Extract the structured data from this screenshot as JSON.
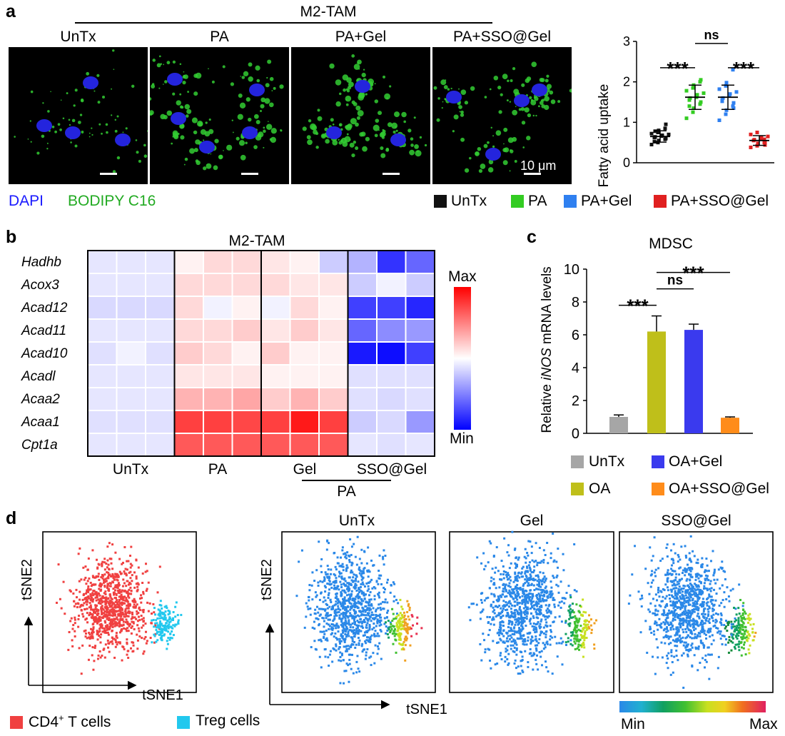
{
  "panel_a": {
    "letter": "a",
    "group_label": "M2-TAM",
    "image_titles": [
      "UnTx",
      "PA",
      "PA+Gel",
      "PA+SSO@Gel"
    ],
    "scalebar_text": "10 μm",
    "stain_dapi": "DAPI",
    "stain_bodipy": "BODIPY C16",
    "colors": {
      "dapi": "#1a1aff",
      "bodipy": "#22cc22"
    }
  },
  "panel_b": {
    "letter": "b",
    "title": "M2-TAM",
    "genes": [
      "Hadhb",
      "Acox3",
      "Acad12",
      "Acad11",
      "Acad10",
      "Acadl",
      "Acaa2",
      "Acaa1",
      "Cpt1a"
    ],
    "group_labels": [
      "UnTx",
      "PA",
      "Gel",
      "SSO@Gel"
    ],
    "bracket_label": "PA",
    "scale_max": "Max",
    "scale_min": "Min"
  },
  "panel_c": {
    "letter": "c",
    "title": "MDSC",
    "ylabel_pre": "Relative ",
    "ylabel_italic": "iNOS",
    "ylabel_post": " mRNA levels",
    "sig_labels": [
      "***",
      "ns",
      "***"
    ],
    "legend": [
      "UnTx",
      "OA+Gel",
      "OA",
      "OA+SSO@Gel"
    ]
  },
  "panel_d": {
    "letter": "d",
    "titles": [
      "UnTx",
      "Gel",
      "SSO@Gel"
    ],
    "axis_x": "tSNE1",
    "axis_y": "tSNE2",
    "legend_cd4_pre": "CD4",
    "legend_cd4_sup": "+",
    "legend_cd4_post": " T cells",
    "legend_treg": "Treg cells",
    "colorbar_min": "Min",
    "colorbar_max": "Max",
    "colors": {
      "cd4": "#f04040",
      "treg": "#22c8ee",
      "base": "#2a88e8"
    }
  },
  "chart_data": [
    {
      "type": "scatter",
      "ylabel": "Fatty acid uptake",
      "ylim": [
        0,
        3
      ],
      "yticks": [
        0,
        1,
        2,
        3
      ],
      "categories": [
        "UnTx",
        "PA",
        "PA+Gel",
        "PA+SSO@Gel"
      ],
      "series": [
        {
          "name": "UnTx",
          "color": "#111111",
          "mean": 0.65,
          "sd": 0.14,
          "values": [
            0.45,
            0.5,
            0.55,
            0.58,
            0.6,
            0.62,
            0.64,
            0.66,
            0.68,
            0.7,
            0.72,
            0.75,
            0.8,
            0.85,
            0.95,
            0.52,
            0.78
          ]
        },
        {
          "name": "PA",
          "color": "#33cc22",
          "mean": 1.62,
          "sd": 0.3,
          "values": [
            1.1,
            1.25,
            1.35,
            1.45,
            1.5,
            1.55,
            1.6,
            1.62,
            1.68,
            1.72,
            1.78,
            1.85,
            1.92,
            2.0,
            2.05,
            1.4
          ]
        },
        {
          "name": "PA+Gel",
          "color": "#2f80f0",
          "mean": 1.62,
          "sd": 0.3,
          "values": [
            1.05,
            1.2,
            1.3,
            1.4,
            1.48,
            1.55,
            1.6,
            1.65,
            1.7,
            1.75,
            1.82,
            1.9,
            1.98,
            2.3,
            1.35,
            1.52
          ]
        },
        {
          "name": "PA+SSO@Gel",
          "color": "#e02020",
          "mean": 0.55,
          "sd": 0.12,
          "values": [
            0.38,
            0.42,
            0.46,
            0.5,
            0.52,
            0.55,
            0.57,
            0.6,
            0.62,
            0.65,
            0.7,
            0.75,
            0.48,
            0.58,
            0.44
          ]
        }
      ],
      "significance": [
        {
          "between": [
            "UnTx",
            "PA"
          ],
          "label": "***"
        },
        {
          "between": [
            "PA",
            "PA+Gel"
          ],
          "label": "ns"
        },
        {
          "between": [
            "PA+Gel",
            "PA+SSO@Gel"
          ],
          "label": "***"
        }
      ],
      "legend": [
        "UnTx",
        "PA",
        "PA+Gel",
        "PA+SSO@Gel"
      ]
    },
    {
      "type": "heatmap",
      "title": "M2-TAM",
      "rows": [
        "Hadhb",
        "Acox3",
        "Acad12",
        "Acad11",
        "Acad10",
        "Acadl",
        "Acaa2",
        "Acaa1",
        "Cpt1a"
      ],
      "column_groups": [
        "UnTx",
        "PA",
        "Gel",
        "SSO@Gel"
      ],
      "replicates_per_group": 3,
      "scale": [
        "Min",
        "Max"
      ],
      "values": [
        [
          -0.1,
          -0.1,
          -0.1,
          0.05,
          0.15,
          0.15,
          0.1,
          0.05,
          -0.2,
          -0.3,
          -0.8,
          -0.6
        ],
        [
          -0.1,
          -0.1,
          -0.1,
          0.15,
          0.15,
          0.15,
          0.15,
          0.1,
          0.1,
          -0.2,
          -0.05,
          -0.2
        ],
        [
          -0.15,
          -0.15,
          -0.15,
          0.15,
          -0.05,
          0.05,
          -0.05,
          0.15,
          0.05,
          -0.75,
          -0.75,
          -0.85
        ],
        [
          -0.1,
          -0.1,
          -0.1,
          0.15,
          0.15,
          0.2,
          0.1,
          0.2,
          0.1,
          -0.6,
          -0.45,
          -0.4
        ],
        [
          -0.12,
          -0.05,
          -0.12,
          0.2,
          0.15,
          0.05,
          0.2,
          0.05,
          0.05,
          -0.9,
          -0.95,
          -0.75
        ],
        [
          -0.1,
          -0.1,
          -0.1,
          0.1,
          0.1,
          0.1,
          0.05,
          0.05,
          0.05,
          -0.12,
          -0.12,
          -0.12
        ],
        [
          -0.1,
          -0.1,
          -0.1,
          0.3,
          0.3,
          0.35,
          0.2,
          0.3,
          0.2,
          -0.12,
          -0.15,
          -0.12
        ],
        [
          -0.12,
          -0.12,
          -0.12,
          0.75,
          0.75,
          0.72,
          0.75,
          0.9,
          0.75,
          -0.2,
          -0.15,
          -0.4
        ],
        [
          -0.1,
          -0.1,
          -0.1,
          0.65,
          0.65,
          0.65,
          0.65,
          0.65,
          0.65,
          -0.1,
          -0.12,
          -0.1
        ]
      ]
    },
    {
      "type": "bar",
      "title": "MDSC",
      "ylabel": "Relative iNOS mRNA levels",
      "ylim": [
        0,
        10
      ],
      "yticks": [
        0,
        2,
        4,
        6,
        8,
        10
      ],
      "categories": [
        "UnTx",
        "OA",
        "OA+Gel",
        "OA+SSO@Gel"
      ],
      "values": [
        1.0,
        6.2,
        6.3,
        0.95
      ],
      "errors": [
        0.12,
        0.95,
        0.35,
        0.05
      ],
      "colors": [
        "#a6a6a6",
        "#bfbf1a",
        "#3a3aee",
        "#ff8c1a"
      ],
      "significance": [
        {
          "between": [
            "UnTx",
            "OA"
          ],
          "label": "***"
        },
        {
          "between": [
            "OA",
            "OA+Gel"
          ],
          "label": "ns"
        },
        {
          "between": [
            "OA",
            "OA+SSO@Gel"
          ],
          "label": "***"
        }
      ]
    },
    {
      "type": "scatter",
      "subtype": "tSNE",
      "xlabel": "tSNE1",
      "ylabel": "tSNE2",
      "plots": [
        "cell types",
        "UnTx",
        "Gel",
        "SSO@Gel"
      ],
      "populations": [
        "CD4+ T cells",
        "Treg cells"
      ],
      "colorbar": [
        "Min",
        "Max"
      ]
    }
  ]
}
